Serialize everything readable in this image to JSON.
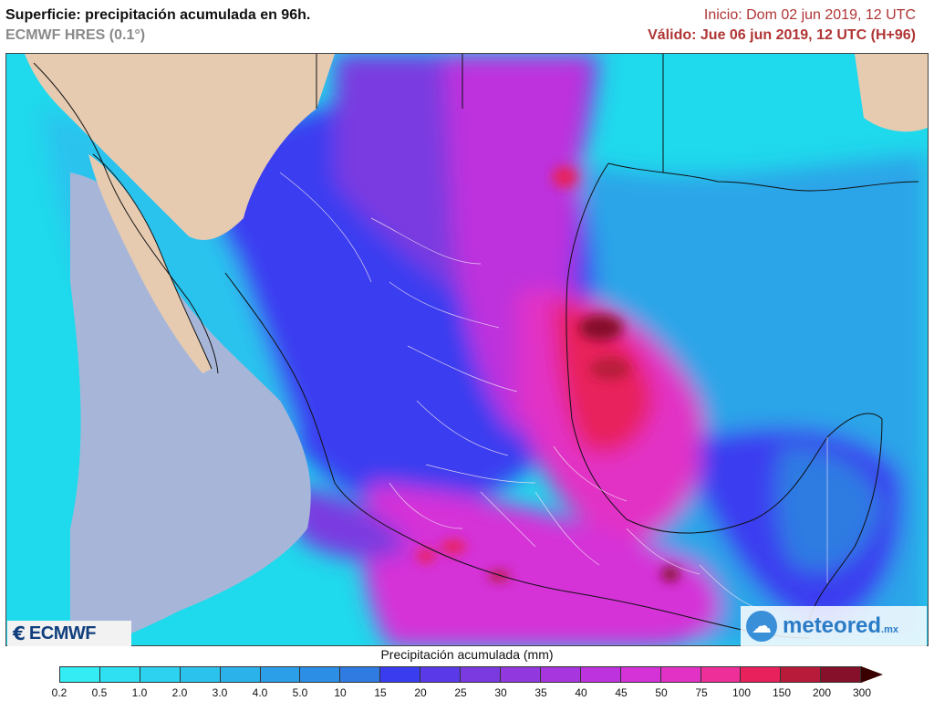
{
  "header": {
    "title": "Superficie: precipitación acumulada en 96h.",
    "model": "ECMWF HRES (0.1°)",
    "init": "Inicio: Dom 02 jun 2019, 12 UTC",
    "valid": "Válido: Jue 06 jun 2019, 12 UTC (H+96)"
  },
  "logos": {
    "ecmwf": "ECMWF",
    "meteored": "meteored",
    "meteored_suffix": ".mx"
  },
  "legend": {
    "title": "Precipitación acumulada (mm)",
    "ticks": [
      "0.2",
      "0.5",
      "1.0",
      "2.0",
      "3.0",
      "4.0",
      "5.0",
      "10",
      "15",
      "20",
      "25",
      "30",
      "35",
      "40",
      "45",
      "50",
      "75",
      "100",
      "150",
      "200",
      "300"
    ],
    "colors": [
      "#33ecf4",
      "#2fe0f2",
      "#2cd2f0",
      "#2bc3ee",
      "#2bb2eb",
      "#2ba0e8",
      "#2c8ee5",
      "#2f7be2",
      "#3a3cf0",
      "#5a3ae8",
      "#7a3ae0",
      "#9238df",
      "#a836de",
      "#bd33dd",
      "#d532d8",
      "#e232c6",
      "#ee2f9a",
      "#e8205c",
      "#b81a3a",
      "#86102a",
      "#4a0010"
    ],
    "arrow_color": "#3a0000"
  },
  "map": {
    "land_color": "#e6cbb1",
    "dry_ocean_color": "#a7b6d8",
    "base_color": "#1fd9ec"
  }
}
